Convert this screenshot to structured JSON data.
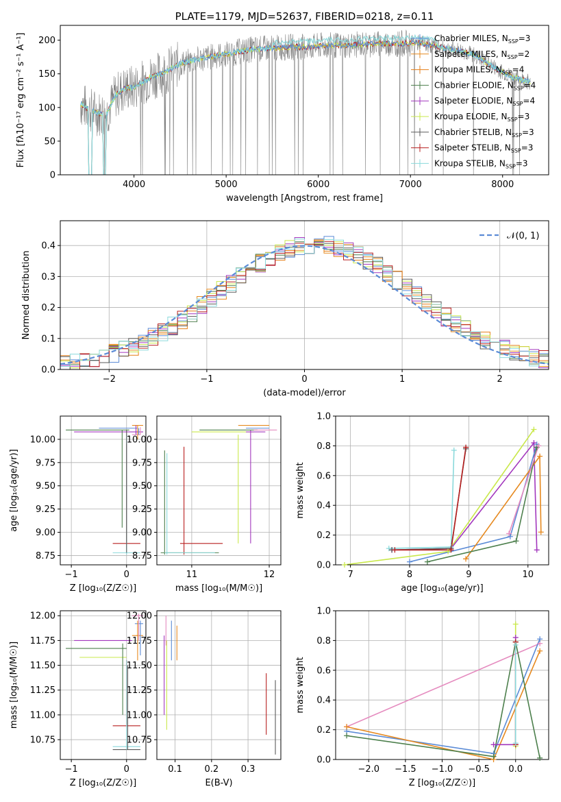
{
  "colors": {
    "cMILES": "#5b8bd6",
    "sMILES": "#e6891f",
    "kMILES": "#e57d14",
    "cELODIE": "#4c7f4c",
    "sELODIE": "#a236bd",
    "kELODIE": "#c9e84b",
    "cSTELIB": "#5a5a5a",
    "sSTELIB": "#b81f1f",
    "kSTELIB": "#8ad9db",
    "data": "#808080",
    "pink": "#e58bbf",
    "normal": "#5b8bd6"
  },
  "chart_data": [
    {
      "id": "spectrum",
      "type": "line",
      "title": "PLATE=1179, MJD=52637, FIBERID=0218, z=0.11",
      "xlabel": "wavelength [Angstrom, rest frame]",
      "ylabel": "Flux [fλ10⁻¹⁷ erg cm⁻² s⁻¹ A⁻¹]",
      "xlim": [
        3200,
        8500
      ],
      "ylim": [
        0,
        222
      ],
      "xticks": [
        4000,
        5000,
        6000,
        7000,
        8000
      ],
      "yticks": [
        0,
        50,
        100,
        150,
        200
      ],
      "grid": false,
      "legend_position": "top-right",
      "continuum": {
        "x": [
          3420,
          3500,
          3600,
          3700,
          3800,
          3900,
          4000,
          4100,
          4200,
          4300,
          4400,
          4500,
          4700,
          4900,
          5100,
          5300,
          5500,
          5700,
          5900,
          6100,
          6300,
          6500,
          6700,
          6900,
          7100,
          7300,
          7500,
          7700,
          7900,
          8100,
          8300
        ],
        "y": [
          105,
          98,
          92,
          90,
          118,
          128,
          130,
          138,
          146,
          150,
          158,
          165,
          172,
          177,
          182,
          187,
          188,
          190,
          190,
          192,
          192,
          194,
          195,
          195,
          196,
          190,
          185,
          178,
          160,
          145,
          138
        ]
      },
      "legend": [
        {
          "label": "Chabrier MILES, N",
          "sub": "SSP",
          "suffix": "=3",
          "color": "cMILES"
        },
        {
          "label": "Salpeter MILES, N",
          "sub": "SSP",
          "suffix": "=2",
          "color": "sMILES"
        },
        {
          "label": "Kroupa MILES, N",
          "sub": "SSP",
          "suffix": "=4",
          "color": "kMILES"
        },
        {
          "label": "Chabrier ELODIE, N",
          "sub": "SSP",
          "suffix": "=4",
          "color": "cELODIE"
        },
        {
          "label": "Salpeter ELODIE, N",
          "sub": "SSP",
          "suffix": "=4",
          "color": "sELODIE"
        },
        {
          "label": "Kroupa ELODIE, N",
          "sub": "SSP",
          "suffix": "=3",
          "color": "kELODIE"
        },
        {
          "label": "Chabrier STELIB, N",
          "sub": "SSP",
          "suffix": "=3",
          "color": "cSTELIB"
        },
        {
          "label": "Salpeter STELIB, N",
          "sub": "SSP",
          "suffix": "=3",
          "color": "sSTELIB"
        },
        {
          "label": "Kroupa STELIB, N",
          "sub": "SSP",
          "suffix": "=3",
          "color": "kSTELIB"
        }
      ]
    },
    {
      "id": "residuals",
      "type": "bar",
      "xlabel": "(data-model)/error",
      "ylabel": "Normed distribution",
      "xlim": [
        -2.5,
        2.5
      ],
      "ylim": [
        0,
        0.48
      ],
      "xticks": [
        -2,
        -1,
        0,
        1,
        2
      ],
      "yticks": [
        0.0,
        0.1,
        0.2,
        0.3,
        0.4
      ],
      "grid": true,
      "bin_width": 0.1,
      "legend": [
        {
          "label": "𝒩(0, 1)",
          "color": "normal",
          "style": "dashed"
        }
      ],
      "legend_position": "top-right"
    },
    {
      "id": "age_vs_Z",
      "type": "scatter",
      "xlabel": "Z [log₁₀(Z/Z☉)]",
      "ylabel": "age  [log₁₀(age/yr)]",
      "xlim": [
        -1.2,
        0.35
      ],
      "ylim": [
        8.65,
        10.25
      ],
      "xticks": [
        -1,
        0
      ],
      "yticks": [
        8.75,
        9.0,
        9.25,
        9.5,
        9.75,
        10.0
      ],
      "grid": true,
      "segments": [
        {
          "c": "cELODIE",
          "x": [
            -1.1,
            0.05
          ],
          "y": [
            10.1,
            10.1
          ]
        },
        {
          "c": "sELODIE",
          "x": [
            -0.95,
            0.3
          ],
          "y": [
            10.08,
            10.08
          ]
        },
        {
          "c": "cMILES",
          "x": [
            -0.5,
            0.2
          ],
          "y": [
            10.12,
            10.12
          ]
        },
        {
          "c": "sMILES",
          "x": [
            0.1,
            0.3
          ],
          "y": [
            10.15,
            10.15
          ]
        },
        {
          "c": "pink",
          "x": [
            0.1,
            0.25
          ],
          "y": [
            10.05,
            10.05
          ]
        },
        {
          "c": "sSTELIB",
          "x": [
            -0.25,
            0.25
          ],
          "y": [
            8.88,
            8.88
          ]
        },
        {
          "c": "kSTELIB",
          "x": [
            -0.25,
            0.25
          ],
          "y": [
            8.78,
            8.78
          ]
        },
        {
          "c": "cELODIE",
          "x": [
            -0.08,
            -0.08
          ],
          "y": [
            9.05,
            10.1
          ]
        },
        {
          "c": "sSTELIB",
          "x": [
            0.0,
            0.0
          ],
          "y": [
            8.9,
            9.95
          ]
        },
        {
          "c": "kSTELIB",
          "x": [
            0.0,
            0.0
          ],
          "y": [
            8.76,
            10.05
          ]
        },
        {
          "c": "cSTELIB",
          "x": [
            0.0,
            0.0
          ],
          "y": [
            8.78,
            10.1
          ]
        },
        {
          "c": "sMILES",
          "x": [
            0.2,
            0.2
          ],
          "y": [
            10.0,
            10.15
          ]
        },
        {
          "c": "sELODIE",
          "x": [
            0.17,
            0.17
          ],
          "y": [
            10.05,
            10.15
          ]
        },
        {
          "c": "cMILES",
          "x": [
            0.22,
            0.22
          ],
          "y": [
            10.05,
            10.12
          ]
        },
        {
          "c": "pink",
          "x": [
            0.25,
            0.25
          ],
          "y": [
            10.05,
            10.13
          ]
        }
      ]
    },
    {
      "id": "age_vs_mass",
      "type": "scatter",
      "xlabel": "mass [log₁₀(M/M☉)]",
      "ylabel": "",
      "xlim": [
        10.55,
        12.15
      ],
      "ylim": [
        8.65,
        10.25
      ],
      "xticks": [
        11,
        12
      ],
      "yticks": [
        8.75,
        9.0,
        9.25,
        9.5,
        9.75,
        10.0
      ],
      "grid": true,
      "segments": [
        {
          "c": "cELODIE",
          "x": [
            10.65,
            10.65
          ],
          "y": [
            8.76,
            9.88
          ]
        },
        {
          "c": "kSTELIB",
          "x": [
            10.68,
            10.68
          ],
          "y": [
            8.76,
            9.85
          ]
        },
        {
          "c": "sSTELIB",
          "x": [
            10.9,
            10.9
          ],
          "y": [
            8.76,
            9.92
          ]
        },
        {
          "c": "kELODIE",
          "x": [
            11.6,
            11.6
          ],
          "y": [
            8.88,
            10.05
          ]
        },
        {
          "c": "sELODIE",
          "x": [
            11.76,
            11.76
          ],
          "y": [
            8.88,
            10.1
          ]
        },
        {
          "c": "cELODIE",
          "x": [
            10.6,
            11.35
          ],
          "y": [
            8.78,
            8.78
          ]
        },
        {
          "c": "kSTELIB",
          "x": [
            10.65,
            11.3
          ],
          "y": [
            8.78,
            8.78
          ]
        },
        {
          "c": "sSTELIB",
          "x": [
            10.85,
            11.4
          ],
          "y": [
            8.88,
            8.88
          ]
        },
        {
          "c": "kELODIE",
          "x": [
            11.0,
            11.8
          ],
          "y": [
            10.08,
            10.08
          ]
        },
        {
          "c": "cELODIE",
          "x": [
            11.1,
            11.85
          ],
          "y": [
            10.1,
            10.1
          ]
        },
        {
          "c": "sMILES",
          "x": [
            11.6,
            12.0
          ],
          "y": [
            10.15,
            10.15
          ]
        },
        {
          "c": "cMILES",
          "x": [
            11.7,
            12.0
          ],
          "y": [
            10.12,
            10.12
          ]
        },
        {
          "c": "pink",
          "x": [
            11.8,
            12.1
          ],
          "y": [
            10.1,
            10.1
          ]
        },
        {
          "c": "sELODIE",
          "x": [
            11.7,
            11.95
          ],
          "y": [
            10.08,
            10.08
          ]
        }
      ]
    },
    {
      "id": "weight_vs_age",
      "type": "line",
      "xlabel": "age  [log₁₀(age/yr)]",
      "ylabel": "mass weight",
      "xlim": [
        6.75,
        10.35
      ],
      "ylim": [
        0,
        1.0
      ],
      "xticks": [
        7,
        8,
        9,
        10
      ],
      "yticks": [
        0.0,
        0.2,
        0.4,
        0.6,
        0.8,
        1.0
      ],
      "grid": true,
      "series": [
        {
          "c": "kELODIE",
          "x": [
            6.9,
            8.65,
            10.1
          ],
          "y": [
            0.0,
            0.09,
            0.91
          ]
        },
        {
          "c": "sELODIE",
          "x": [
            7.7,
            8.7,
            10.1,
            10.15
          ],
          "y": [
            0.1,
            0.11,
            0.82,
            0.1
          ]
        },
        {
          "c": "cMILES",
          "x": [
            8.0,
            9.7,
            10.15
          ],
          "y": [
            0.02,
            0.19,
            0.81
          ]
        },
        {
          "c": "sMILES",
          "x": [
            8.95,
            10.2,
            10.22
          ],
          "y": [
            0.04,
            0.73,
            0.22
          ]
        },
        {
          "c": "cELODIE",
          "x": [
            8.3,
            9.8,
            10.15
          ],
          "y": [
            0.02,
            0.16,
            0.79
          ]
        },
        {
          "c": "pink",
          "x": [
            9.68,
            10.18
          ],
          "y": [
            0.21,
            0.8
          ]
        },
        {
          "c": "kSTELIB",
          "x": [
            7.65,
            8.7,
            8.75
          ],
          "y": [
            0.11,
            0.12,
            0.77
          ]
        },
        {
          "c": "cSTELIB",
          "x": [
            7.7,
            8.7,
            8.95
          ],
          "y": [
            0.1,
            0.11,
            0.78
          ]
        },
        {
          "c": "sSTELIB",
          "x": [
            7.75,
            8.7,
            8.95
          ],
          "y": [
            0.1,
            0.1,
            0.79
          ]
        }
      ]
    },
    {
      "id": "mass_vs_Z",
      "type": "scatter",
      "xlabel": "Z [log₁₀(Z/Z☉)]",
      "ylabel": "mass [log₁₀(M/M☉)]",
      "xlim": [
        -1.2,
        0.35
      ],
      "ylim": [
        10.55,
        12.05
      ],
      "xticks": [
        -1,
        0
      ],
      "yticks": [
        10.75,
        11.0,
        11.25,
        11.5,
        11.75,
        12.0
      ],
      "grid": true,
      "segments": [
        {
          "c": "cELODIE",
          "x": [
            -1.1,
            0.0
          ],
          "y": [
            11.67,
            11.67
          ]
        },
        {
          "c": "sELODIE",
          "x": [
            -0.95,
            0.1
          ],
          "y": [
            11.75,
            11.75
          ]
        },
        {
          "c": "kELODIE",
          "x": [
            -0.85,
            0.0
          ],
          "y": [
            11.58,
            11.58
          ]
        },
        {
          "c": "sSTELIB",
          "x": [
            -0.25,
            0.25
          ],
          "y": [
            10.89,
            10.89
          ]
        },
        {
          "c": "kSTELIB",
          "x": [
            -0.25,
            0.25
          ],
          "y": [
            10.68,
            10.68
          ]
        },
        {
          "c": "cSTELIB",
          "x": [
            -0.25,
            0.25
          ],
          "y": [
            10.65,
            10.65
          ]
        },
        {
          "c": "sMILES",
          "x": [
            0.1,
            0.3
          ],
          "y": [
            11.8,
            11.8
          ]
        },
        {
          "c": "cMILES",
          "x": [
            0.15,
            0.3
          ],
          "y": [
            11.92,
            11.92
          ]
        },
        {
          "c": "pink",
          "x": [
            0.1,
            0.3
          ],
          "y": [
            12.0,
            12.0
          ]
        },
        {
          "c": "cELODIE",
          "x": [
            -0.07,
            -0.07
          ],
          "y": [
            11.0,
            11.72
          ]
        },
        {
          "c": "sSTELIB",
          "x": [
            0.0,
            0.0
          ],
          "y": [
            10.9,
            11.55
          ]
        },
        {
          "c": "kSTELIB",
          "x": [
            0.0,
            0.0
          ],
          "y": [
            10.65,
            11.55
          ]
        },
        {
          "c": "cSTELIB",
          "x": [
            0.02,
            0.02
          ],
          "y": [
            10.65,
            11.5
          ]
        },
        {
          "c": "sMILES",
          "x": [
            0.2,
            0.2
          ],
          "y": [
            11.55,
            11.95
          ]
        },
        {
          "c": "pink",
          "x": [
            0.22,
            0.22
          ],
          "y": [
            11.75,
            12.02
          ]
        },
        {
          "c": "cMILES",
          "x": [
            0.25,
            0.25
          ],
          "y": [
            11.6,
            11.95
          ]
        }
      ]
    },
    {
      "id": "mass_vs_ebv",
      "type": "scatter",
      "xlabel": "E(B-V)",
      "ylabel": "",
      "xlim": [
        0.05,
        0.39
      ],
      "ylim": [
        10.55,
        12.05
      ],
      "xticks": [
        0.1,
        0.2,
        0.3
      ],
      "yticks": [
        10.75,
        11.0,
        11.25,
        11.5,
        11.75,
        12.0
      ],
      "grid": true,
      "segments": [
        {
          "c": "sELODIE",
          "x": [
            0.07,
            0.07
          ],
          "y": [
            11.0,
            11.8
          ]
        },
        {
          "c": "kELODIE",
          "x": [
            0.077,
            0.077
          ],
          "y": [
            10.85,
            11.75
          ]
        },
        {
          "c": "pink",
          "x": [
            0.075,
            0.075
          ],
          "y": [
            11.7,
            12.0
          ]
        },
        {
          "c": "cMILES",
          "x": [
            0.09,
            0.09
          ],
          "y": [
            11.55,
            11.95
          ]
        },
        {
          "c": "sMILES",
          "x": [
            0.105,
            0.105
          ],
          "y": [
            11.55,
            11.9
          ]
        },
        {
          "c": "sSTELIB",
          "x": [
            0.35,
            0.35
          ],
          "y": [
            10.8,
            11.42
          ]
        },
        {
          "c": "cSTELIB",
          "x": [
            0.375,
            0.375
          ],
          "y": [
            10.6,
            11.35
          ]
        }
      ]
    },
    {
      "id": "weight_vs_Z",
      "type": "line",
      "xlabel": "Z [log₁₀(Z/Z☉)]",
      "ylabel": "mass weight",
      "xlim": [
        -2.45,
        0.45
      ],
      "ylim": [
        0,
        1.0
      ],
      "xticks": [
        -2.0,
        -1.5,
        -1.0,
        -0.5,
        0.0
      ],
      "yticks": [
        0.0,
        0.2,
        0.4,
        0.6,
        0.8,
        1.0
      ],
      "grid": true,
      "series": [
        {
          "c": "kELODIE",
          "x": [
            0.0,
            0.0
          ],
          "y": [
            0.09,
            0.91
          ]
        },
        {
          "c": "pink",
          "x": [
            -2.3,
            0.33
          ],
          "y": [
            0.22,
            0.78
          ]
        },
        {
          "c": "cMILES",
          "x": [
            -2.3,
            -0.3,
            0.33
          ],
          "y": [
            0.19,
            0.04,
            0.81
          ]
        },
        {
          "c": "sMILES",
          "x": [
            -2.3,
            -0.3,
            0.33
          ],
          "y": [
            0.22,
            0.0,
            0.73
          ]
        },
        {
          "c": "cELODIE",
          "x": [
            -2.3,
            -0.3,
            0.0,
            0.33
          ],
          "y": [
            0.16,
            0.02,
            0.79,
            0.01
          ]
        },
        {
          "c": "sELODIE",
          "x": [
            -0.3,
            0.0,
            0.0
          ],
          "y": [
            0.1,
            0.1,
            0.82
          ]
        },
        {
          "c": "sSTELIB",
          "x": [
            0.0,
            0.0
          ],
          "y": [
            0.1,
            0.79
          ]
        },
        {
          "c": "kSTELIB",
          "x": [
            0.0,
            0.0
          ],
          "y": [
            0.11,
            0.77
          ]
        }
      ]
    }
  ]
}
